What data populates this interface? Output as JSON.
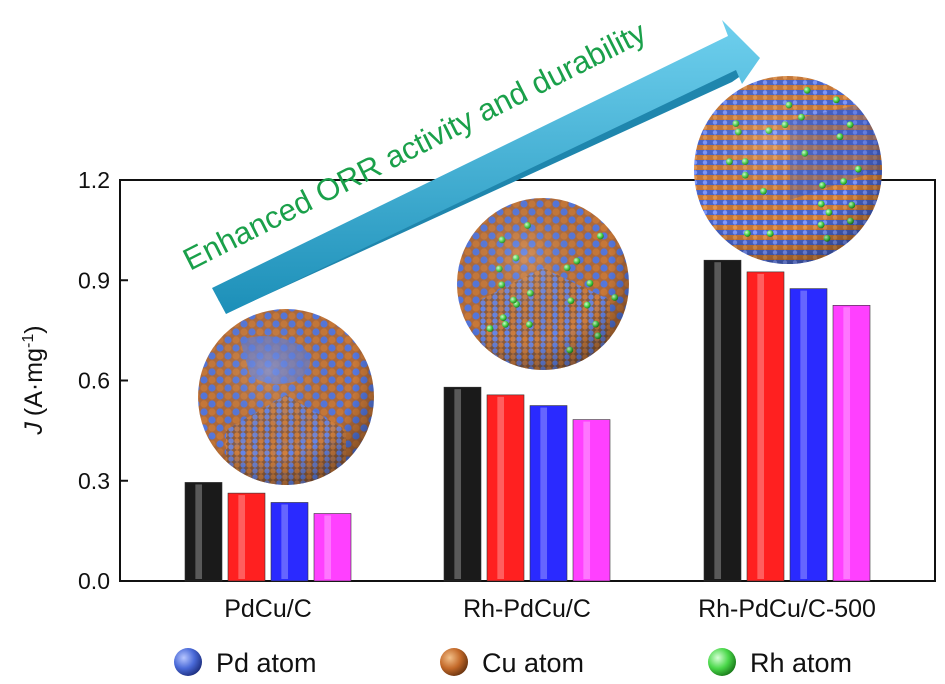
{
  "chart_data": {
    "type": "bar",
    "ylabel_italic": "J",
    "ylabel_unit": "(A·mg",
    "ylabel_sup": "-1",
    "ylabel_close": ")",
    "ylim": [
      0,
      1.2
    ],
    "yticks": [
      "0.0",
      "0.3",
      "0.6",
      "0.9",
      "1.2"
    ],
    "ytick_values": [
      0,
      0.3,
      0.6,
      0.9,
      1.2
    ],
    "categories": [
      "PdCu/C",
      "Rh-PdCu/C",
      "Rh-PdCu/C-500"
    ],
    "series": [
      {
        "color": "#1a1a1a",
        "values": [
          0.295,
          0.58,
          0.96
        ]
      },
      {
        "color": "#ff2020",
        "values": [
          0.263,
          0.557,
          0.925
        ]
      },
      {
        "color": "#2a2aff",
        "values": [
          0.235,
          0.525,
          0.875
        ]
      },
      {
        "color": "#ff40ff",
        "values": [
          0.202,
          0.483,
          0.825
        ]
      }
    ],
    "grid": false
  },
  "annotation": {
    "arrow_text": "Enhanced ORR activity and durability",
    "arrow_color": "#2aa3cc"
  },
  "legend": {
    "items": [
      {
        "label": "Pd atom",
        "color": "#4a6ad8"
      },
      {
        "label": "Cu atom",
        "color": "#c46a2a"
      },
      {
        "label": "Rh atom",
        "color": "#4ad84a"
      }
    ]
  },
  "nanoparticles": [
    {
      "icon": "pdcu-nanoparticle-sphere",
      "rh": false
    },
    {
      "icon": "rh-pdcu-nanoparticle-sphere",
      "rh": true
    },
    {
      "icon": "rh-pdcu-500-nanoparticle-sphere",
      "rh": true
    }
  ]
}
